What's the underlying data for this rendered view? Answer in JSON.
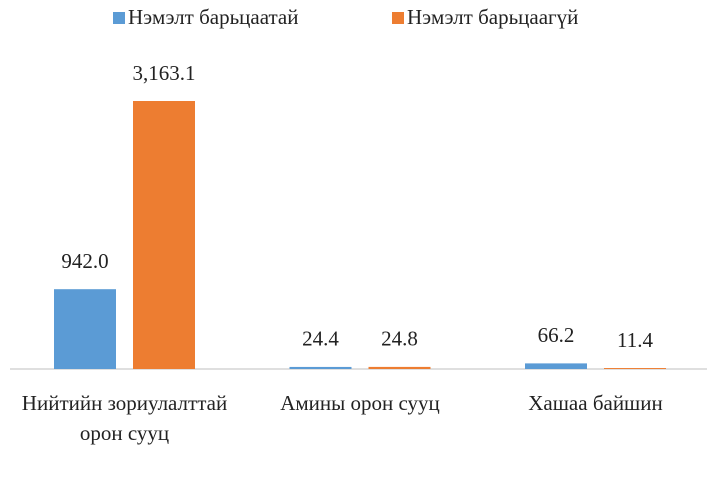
{
  "chart_data": {
    "type": "bar",
    "categories": [
      "Нийтийн зориулалттай орон сууц",
      "Амины орон сууц",
      "Хашаа байшин"
    ],
    "series": [
      {
        "name": "Нэмэлт барьцаатай",
        "color": "#5b9bd5",
        "values": [
          942.0,
          24.4,
          66.2
        ],
        "value_labels": [
          "942.0",
          "24.4",
          "66.2"
        ]
      },
      {
        "name": "Нэмэлт барьцаагүй",
        "color": "#ed7d31",
        "values": [
          3163.1,
          24.8,
          11.4
        ],
        "value_labels": [
          "3,163.1",
          "24.8",
          "11.4"
        ]
      }
    ],
    "legend": "top"
  }
}
